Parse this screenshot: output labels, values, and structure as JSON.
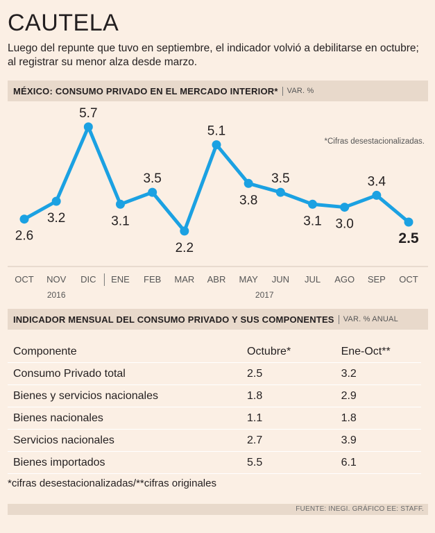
{
  "header": {
    "title": "CAUTELA",
    "subtitle": "Luego del repunte que tuvo en septiembre, el indicador volvió a debilitarse en octubre; al registrar su menor alza desde marzo."
  },
  "chart_section": {
    "title": "MÉXICO: CONSUMO PRIVADO EN EL MERCADO INTERIOR*",
    "unit": "VAR. %"
  },
  "chart_data": {
    "type": "line",
    "title": "MÉXICO: CONSUMO PRIVADO EN EL MERCADO INTERIOR*",
    "ylabel": "VAR. %",
    "categories": [
      "OCT",
      "NOV",
      "DIC",
      "ENE",
      "FEB",
      "MAR",
      "ABR",
      "MAY",
      "JUN",
      "JUL",
      "AGO",
      "SEP",
      "OCT"
    ],
    "values": [
      2.6,
      3.2,
      5.7,
      3.1,
      3.5,
      2.2,
      5.1,
      3.8,
      3.5,
      3.1,
      3.0,
      3.4,
      2.5
    ],
    "value_labels": [
      "2.6",
      "3.2",
      "5.7",
      "3.1",
      "3.5",
      "2.2",
      "5.1",
      "3.8",
      "3.5",
      "3.1",
      "3.0",
      "3.4",
      "2.5"
    ],
    "years": [
      "2016",
      "2017"
    ],
    "annotation": "*Cifras desestacionalizadas.",
    "ylim": [
      1.8,
      6.0
    ],
    "line_color": "#1ba1e2",
    "grid": false
  },
  "table_section": {
    "title": "INDICADOR MENSUAL DEL CONSUMO PRIVADO Y SUS COMPONENTES",
    "unit": "VAR. % ANUAL"
  },
  "table": {
    "headers": [
      "Componente",
      "Octubre*",
      "Ene-Oct**"
    ],
    "rows": [
      [
        "Consumo Privado total",
        "2.5",
        "3.2"
      ],
      [
        "Bienes y servicios nacionales",
        "1.8",
        "2.9"
      ],
      [
        "Bienes nacionales",
        "1.1",
        "1.8"
      ],
      [
        "Servicios nacionales",
        "2.7",
        "3.9"
      ],
      [
        "Bienes importados",
        "5.5",
        "6.1"
      ]
    ]
  },
  "footnote": "*cifras desestacionalizadas/**cifras originales",
  "source": "FUENTE: INEGI. GRÁFICO EE: STAFF."
}
